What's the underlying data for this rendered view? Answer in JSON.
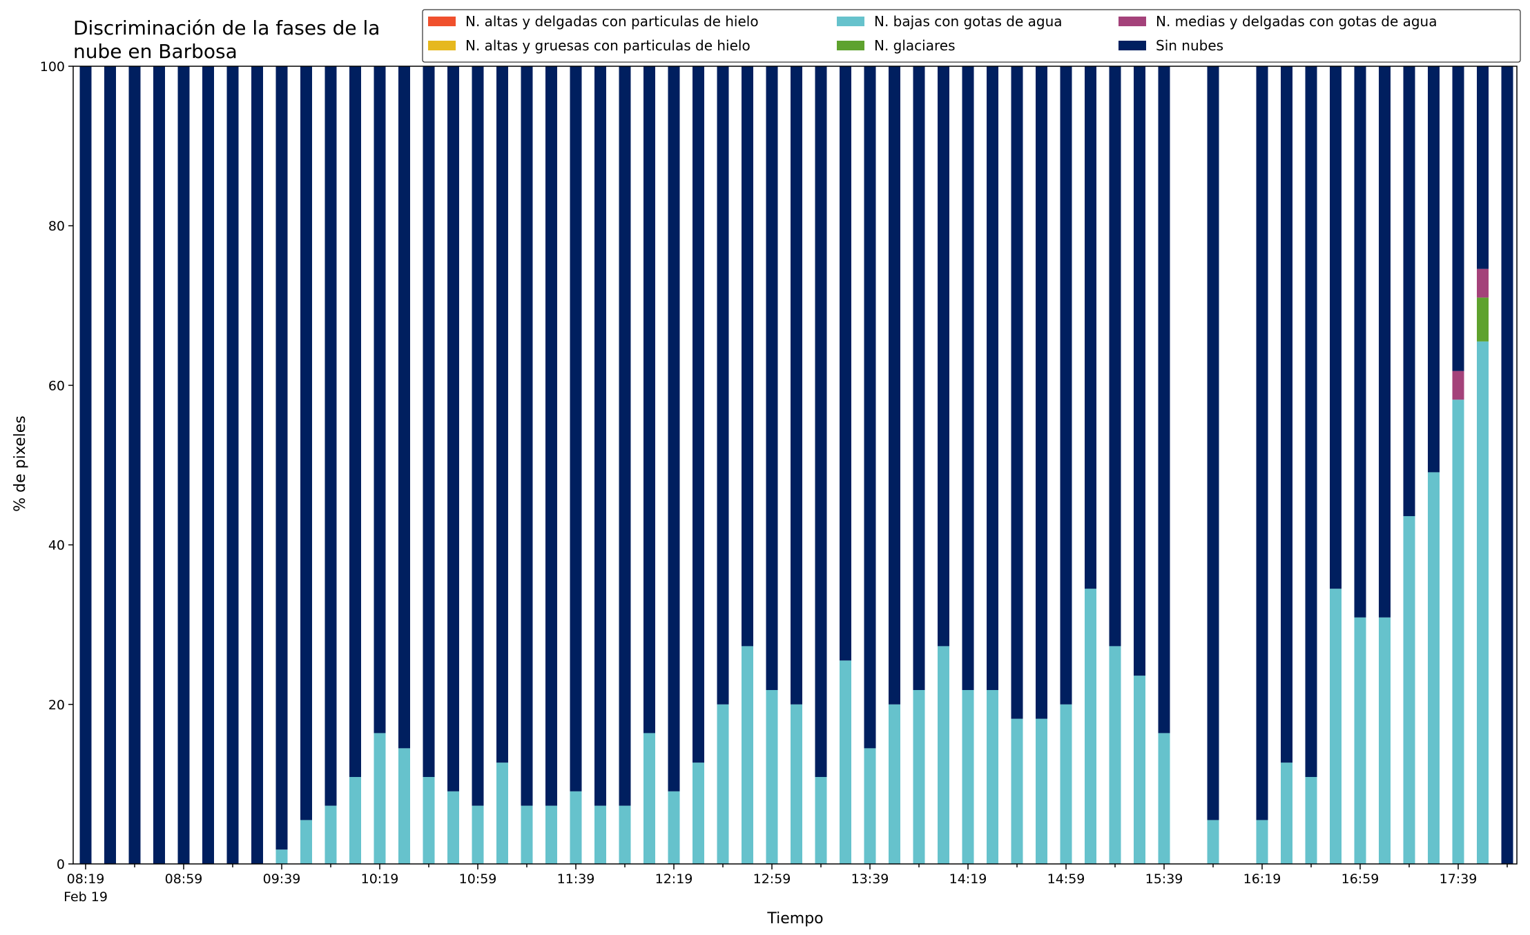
{
  "chart_data": {
    "type": "bar",
    "stacked": true,
    "title_lines": [
      "Discriminación de la fases de la",
      "nube en Barbosa"
    ],
    "xlabel": "Tiempo",
    "ylabel": "% de pixeles",
    "ylim": [
      0,
      100
    ],
    "yticks": [
      0,
      20,
      40,
      60,
      80,
      100
    ],
    "grid": false,
    "legend_position": "top-right",
    "x_sub_label": "Feb 19",
    "x": [
      "08:19",
      "08:29",
      "08:39",
      "08:49",
      "08:59",
      "09:09",
      "09:19",
      "09:29",
      "09:39",
      "09:49",
      "09:59",
      "10:09",
      "10:19",
      "10:29",
      "10:39",
      "10:49",
      "10:59",
      "11:09",
      "11:19",
      "11:29",
      "11:39",
      "11:49",
      "11:59",
      "12:09",
      "12:19",
      "12:29",
      "12:39",
      "12:49",
      "12:59",
      "13:09",
      "13:19",
      "13:29",
      "13:39",
      "13:49",
      "13:59",
      "14:09",
      "14:19",
      "14:29",
      "14:39",
      "14:49",
      "14:59",
      "15:09",
      "15:19",
      "15:29",
      "15:39",
      "15:49",
      "15:59",
      "16:09",
      "16:19",
      "16:29",
      "16:39",
      "16:49",
      "16:59",
      "17:09",
      "17:19",
      "17:29",
      "17:39",
      "17:49",
      "17:59"
    ],
    "x_tick_labels": [
      "08:19",
      "08:59",
      "09:39",
      "10:19",
      "10:59",
      "11:39",
      "12:19",
      "12:59",
      "13:39",
      "14:19",
      "14:59",
      "15:39",
      "16:19",
      "16:59",
      "17:39"
    ],
    "series": [
      {
        "name": "N. altas y delgadas con particulas de hielo",
        "color": "#f0502d",
        "values": [
          0,
          0,
          0,
          0,
          0,
          0,
          0,
          0,
          0,
          0,
          0,
          0,
          0,
          0,
          0,
          0,
          0,
          0,
          0,
          0,
          0,
          0,
          0,
          0,
          0,
          0,
          0,
          0,
          0,
          0,
          0,
          0,
          0,
          0,
          0,
          0,
          0,
          0,
          0,
          0,
          0,
          0,
          0,
          0,
          0,
          null,
          0,
          null,
          0,
          0,
          0,
          0,
          0,
          0,
          0,
          0,
          0,
          0,
          0
        ]
      },
      {
        "name": "N. altas y gruesas con particulas de hielo",
        "color": "#e6b81e",
        "values": [
          0,
          0,
          0,
          0,
          0,
          0,
          0,
          0,
          0,
          0,
          0,
          0,
          0,
          0,
          0,
          0,
          0,
          0,
          0,
          0,
          0,
          0,
          0,
          0,
          0,
          0,
          0,
          0,
          0,
          0,
          0,
          0,
          0,
          0,
          0,
          0,
          0,
          0,
          0,
          0,
          0,
          0,
          0,
          0,
          0,
          null,
          0,
          null,
          0,
          0,
          0,
          0,
          0,
          0,
          0,
          0,
          0,
          0,
          0
        ]
      },
      {
        "name": "N. bajas con gotas de agua",
        "color": "#66c2cc",
        "values": [
          0,
          0,
          0,
          0,
          0,
          0,
          0,
          0,
          1.8,
          5.5,
          7.3,
          10.9,
          16.4,
          14.5,
          10.9,
          9.1,
          7.3,
          12.7,
          7.3,
          7.3,
          9.1,
          7.3,
          7.3,
          16.4,
          9.1,
          12.7,
          20,
          27.3,
          21.8,
          20,
          10.9,
          25.5,
          14.5,
          20,
          21.8,
          27.3,
          21.8,
          21.8,
          18.2,
          18.2,
          20,
          34.5,
          27.3,
          23.6,
          16.4,
          null,
          5.5,
          null,
          5.5,
          12.7,
          10.9,
          34.5,
          30.9,
          30.9,
          43.6,
          49.1,
          58.2,
          65.5,
          0
        ]
      },
      {
        "name": "N. glaciares",
        "color": "#5ea22e",
        "values": [
          0,
          0,
          0,
          0,
          0,
          0,
          0,
          0,
          0,
          0,
          0,
          0,
          0,
          0,
          0,
          0,
          0,
          0,
          0,
          0,
          0,
          0,
          0,
          0,
          0,
          0,
          0,
          0,
          0,
          0,
          0,
          0,
          0,
          0,
          0,
          0,
          0,
          0,
          0,
          0,
          0,
          0,
          0,
          0,
          0,
          null,
          0,
          null,
          0,
          0,
          0,
          0,
          0,
          0,
          0,
          0,
          0,
          5.5,
          0
        ]
      },
      {
        "name": "N. medias y delgadas con gotas de agua",
        "color": "#a4427a",
        "values": [
          0,
          0,
          0,
          0,
          0,
          0,
          0,
          0,
          0,
          0,
          0,
          0,
          0,
          0,
          0,
          0,
          0,
          0,
          0,
          0,
          0,
          0,
          0,
          0,
          0,
          0,
          0,
          0,
          0,
          0,
          0,
          0,
          0,
          0,
          0,
          0,
          0,
          0,
          0,
          0,
          0,
          0,
          0,
          0,
          0,
          null,
          0,
          null,
          0,
          0,
          0,
          0,
          0,
          0,
          0,
          0,
          3.6,
          3.6,
          0
        ]
      },
      {
        "name": "Sin nubes",
        "color": "#001f5f",
        "values": [
          100,
          100,
          100,
          100,
          100,
          100,
          100,
          100,
          98.2,
          94.5,
          92.7,
          89.1,
          83.6,
          85.5,
          89.1,
          90.9,
          92.7,
          87.3,
          92.7,
          92.7,
          90.9,
          92.7,
          92.7,
          83.6,
          90.9,
          87.3,
          80,
          72.7,
          78.2,
          80,
          89.1,
          74.5,
          85.5,
          80,
          78.2,
          72.7,
          78.2,
          78.2,
          81.8,
          81.8,
          80,
          65.5,
          72.7,
          76.4,
          83.6,
          null,
          94.5,
          null,
          94.5,
          87.3,
          89.1,
          65.5,
          69.1,
          69.1,
          56.4,
          50.9,
          38.2,
          25.4,
          100
        ]
      }
    ]
  }
}
